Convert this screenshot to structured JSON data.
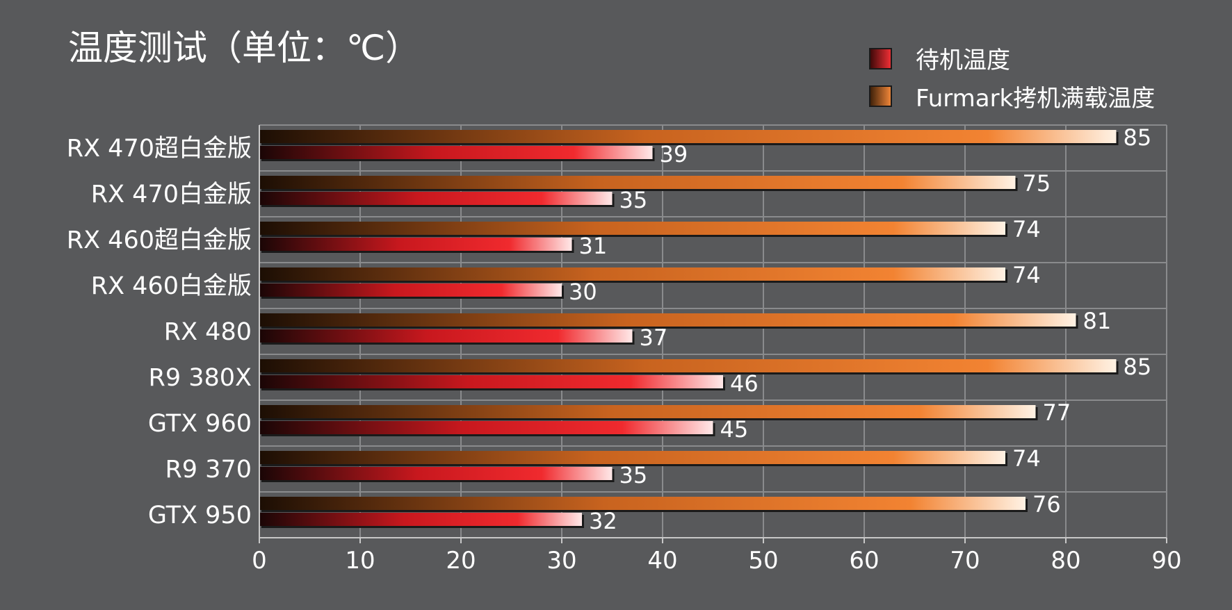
{
  "chart_data": {
    "type": "bar",
    "orientation": "horizontal",
    "title": "温度测试（单位：℃）",
    "categories": [
      "RX 470超白金版",
      "RX 470白金版",
      "RX 460超白金版",
      "RX 460白金版",
      "RX 480",
      "R9 380X",
      "GTX 960",
      "R9 370",
      "GTX 950"
    ],
    "series": [
      {
        "name": "待机温度",
        "color": "#e8252a",
        "values": [
          39,
          35,
          31,
          30,
          37,
          46,
          45,
          35,
          32
        ]
      },
      {
        "name": "Furmark拷机满载温度",
        "color": "#ee7a2a",
        "values": [
          85,
          75,
          74,
          74,
          81,
          85,
          77,
          74,
          76
        ]
      }
    ],
    "xlim": [
      0,
      90
    ],
    "xticks": [
      0,
      10,
      20,
      30,
      40,
      50,
      60,
      70,
      80,
      90
    ],
    "xlabel": "",
    "ylabel": "",
    "grid": true,
    "legend_position": "top-right",
    "background_color": "#58595b"
  }
}
